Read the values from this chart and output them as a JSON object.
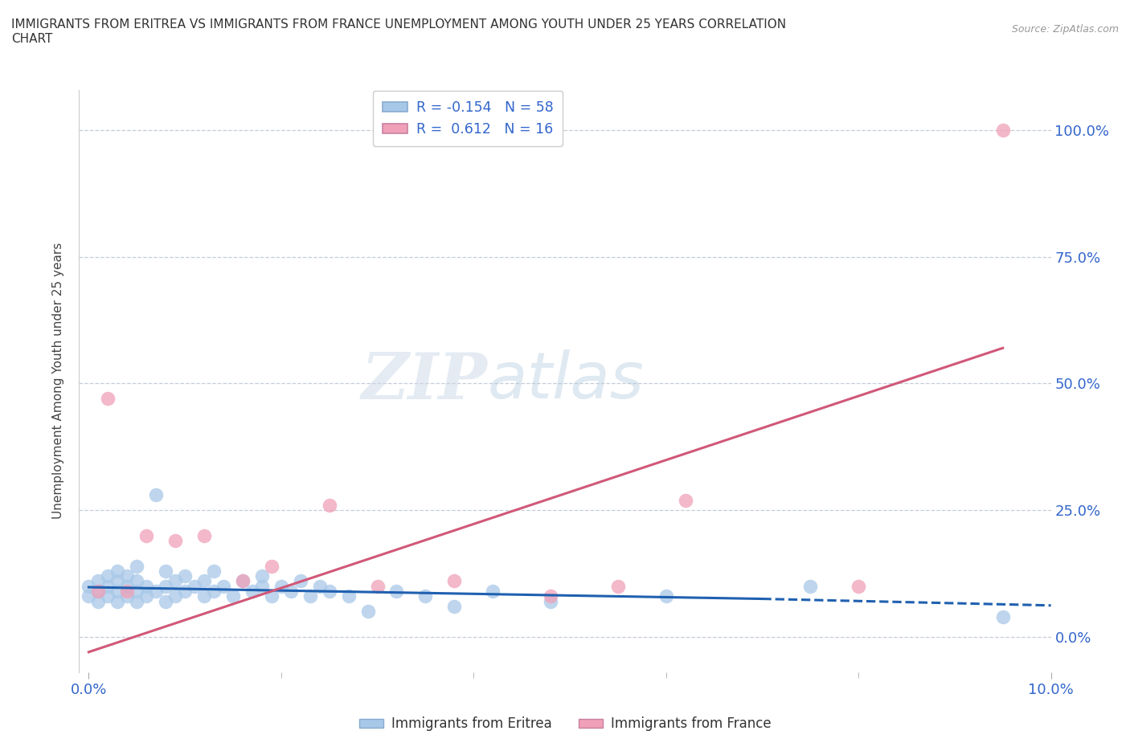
{
  "title_line1": "IMMIGRANTS FROM ERITREA VS IMMIGRANTS FROM FRANCE UNEMPLOYMENT AMONG YOUTH UNDER 25 YEARS CORRELATION",
  "title_line2": "CHART",
  "source_text": "Source: ZipAtlas.com",
  "ylabel": "Unemployment Among Youth under 25 years",
  "ytick_labels": [
    "0.0%",
    "25.0%",
    "50.0%",
    "75.0%",
    "100.0%"
  ],
  "ytick_values": [
    0.0,
    0.25,
    0.5,
    0.75,
    1.0
  ],
  "legend_eritrea": "R = -0.154   N = 58",
  "legend_france": "R =  0.612   N = 16",
  "eritrea_color": "#a8c8e8",
  "france_color": "#f0a0b8",
  "trendline_eritrea_color": "#2060b0",
  "trendline_france_color": "#d05878",
  "background_color": "#ffffff",
  "scatter_eritrea_x": [
    0.0,
    0.0,
    0.001,
    0.001,
    0.001,
    0.002,
    0.002,
    0.002,
    0.003,
    0.003,
    0.003,
    0.003,
    0.004,
    0.004,
    0.004,
    0.005,
    0.005,
    0.005,
    0.005,
    0.006,
    0.006,
    0.007,
    0.007,
    0.008,
    0.008,
    0.008,
    0.009,
    0.009,
    0.01,
    0.01,
    0.011,
    0.012,
    0.012,
    0.013,
    0.013,
    0.014,
    0.015,
    0.016,
    0.017,
    0.018,
    0.018,
    0.019,
    0.02,
    0.021,
    0.022,
    0.023,
    0.024,
    0.025,
    0.027,
    0.029,
    0.032,
    0.035,
    0.038,
    0.042,
    0.048,
    0.06,
    0.075,
    0.095
  ],
  "scatter_eritrea_y": [
    0.1,
    0.08,
    0.09,
    0.07,
    0.11,
    0.08,
    0.1,
    0.12,
    0.07,
    0.09,
    0.11,
    0.13,
    0.08,
    0.1,
    0.12,
    0.07,
    0.09,
    0.11,
    0.14,
    0.08,
    0.1,
    0.09,
    0.28,
    0.07,
    0.1,
    0.13,
    0.08,
    0.11,
    0.09,
    0.12,
    0.1,
    0.08,
    0.11,
    0.09,
    0.13,
    0.1,
    0.08,
    0.11,
    0.09,
    0.1,
    0.12,
    0.08,
    0.1,
    0.09,
    0.11,
    0.08,
    0.1,
    0.09,
    0.08,
    0.05,
    0.09,
    0.08,
    0.06,
    0.09,
    0.07,
    0.08,
    0.1,
    0.04
  ],
  "scatter_france_x": [
    0.001,
    0.002,
    0.004,
    0.006,
    0.009,
    0.012,
    0.016,
    0.019,
    0.025,
    0.03,
    0.038,
    0.048,
    0.055,
    0.062,
    0.08,
    0.095
  ],
  "scatter_france_y": [
    0.09,
    0.47,
    0.09,
    0.2,
    0.19,
    0.2,
    0.11,
    0.14,
    0.26,
    0.1,
    0.11,
    0.08,
    0.1,
    0.27,
    0.1,
    1.0
  ],
  "trendline_eritrea_x0": 0.0,
  "trendline_eritrea_x1": 0.07,
  "trendline_eritrea_y0": 0.098,
  "trendline_eritrea_y1": 0.075,
  "trendline_eritrea_dash_x0": 0.07,
  "trendline_eritrea_dash_x1": 0.1,
  "trendline_eritrea_dash_y0": 0.075,
  "trendline_eritrea_dash_y1": 0.062,
  "trendline_france_x0": 0.0,
  "trendline_france_x1": 0.095,
  "trendline_france_y0": -0.03,
  "trendline_france_y1": 0.57,
  "xmin": -0.001,
  "xmax": 0.1,
  "ymin": -0.07,
  "ymax": 1.08
}
